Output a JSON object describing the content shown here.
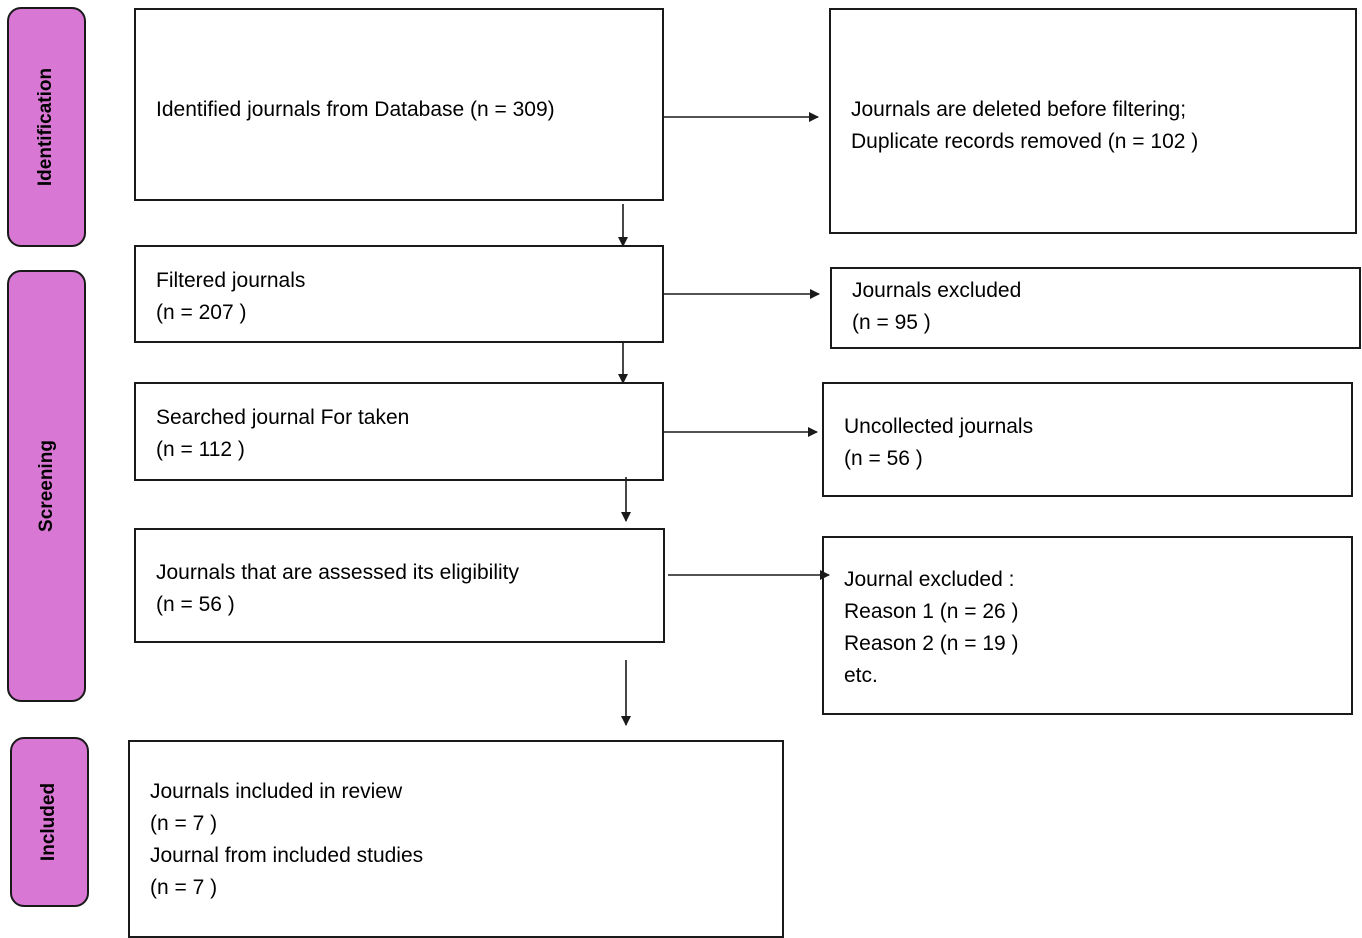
{
  "colors": {
    "phase_fill": "#d977d4",
    "line": "#1a1a1a"
  },
  "phases": {
    "identification": "Identification",
    "screening": "Screening",
    "included": "Included"
  },
  "boxes": {
    "identified": [
      "Identified journals from Database (n = 309)"
    ],
    "removed": [
      "Journals are deleted before filtering;",
      "Duplicate records removed (n = 102 )"
    ],
    "filtered": [
      "Filtered journals",
      "(n = 207 )"
    ],
    "excluded": [
      "Journals excluded",
      "(n = 95 )"
    ],
    "searched": [
      "Searched journal For taken",
      "(n = 112 )"
    ],
    "uncollected": [
      "Uncollected journals",
      "(n = 56 )"
    ],
    "assessed": [
      "Journals that are assessed its eligibility",
      "(n = 56 )"
    ],
    "excluded_reasons": [
      "Journal excluded :",
      "Reason 1 (n = 26 )",
      "Reason 2 (n = 19 )",
      "etc."
    ],
    "included": [
      "Journals included in review",
      "(n = 7 )",
      "Journal from included studies",
      "(n = 7 )"
    ]
  }
}
